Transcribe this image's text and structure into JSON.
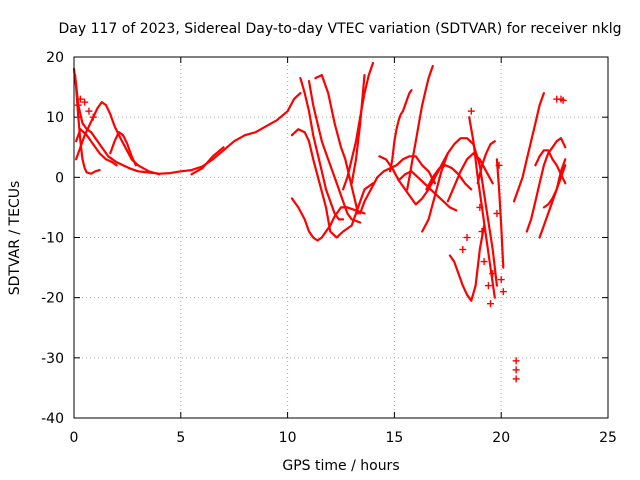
{
  "chart_data": {
    "type": "scatter",
    "title": "Day 117 of 2023, Sidereal Day-to-day VTEC variation (SDTVAR) for receiver nklg",
    "xlabel": "GPS time / hours",
    "ylabel": "SDTVAR / TECUs",
    "xlim": [
      0,
      25
    ],
    "ylim": [
      -40,
      20
    ],
    "xticks": [
      "0",
      "5",
      "10",
      "15",
      "20",
      "25"
    ],
    "yticks": [
      "-40",
      "-30",
      "-20",
      "-10",
      "0",
      "10",
      "20"
    ],
    "xtick_values": [
      0,
      5,
      10,
      15,
      20,
      25
    ],
    "ytick_values": [
      -40,
      -30,
      -20,
      -10,
      0,
      10,
      20
    ],
    "grid": true,
    "marker": "plus",
    "color": "#ff0000",
    "series": [
      {
        "x": [
          0.0,
          0.1,
          0.2,
          0.3,
          0.4,
          0.5,
          0.6,
          0.8,
          1.0,
          1.2
        ],
        "y": [
          18,
          15,
          10,
          6,
          3,
          1.5,
          0.8,
          0.6,
          1.0,
          1.2
        ]
      },
      {
        "x": [
          0.05,
          0.2,
          0.4,
          0.6,
          0.8,
          1.0,
          1.3,
          1.6,
          2.0,
          2.3,
          2.6,
          3.0,
          3.5,
          4.0,
          4.5,
          5.0,
          5.5,
          6.0,
          6.5,
          7.0,
          7.5,
          8.0,
          8.5,
          9.0,
          9.5,
          10.0,
          10.3,
          10.6
        ],
        "y": [
          17,
          12,
          9,
          8,
          7.5,
          6.5,
          5,
          3.5,
          2.5,
          2,
          1.5,
          1,
          0.8,
          0.6,
          0.7,
          1.0,
          1.2,
          1.8,
          3,
          4.5,
          6,
          7,
          7.5,
          8.5,
          9.5,
          11,
          13,
          14
        ]
      },
      {
        "x": [
          0.1,
          0.3,
          0.5,
          0.7,
          0.9,
          1.1,
          1.3,
          1.5,
          1.7,
          1.9,
          2.1,
          2.4,
          2.7,
          3.0,
          3.5,
          4.0
        ],
        "y": [
          3,
          5,
          7,
          8.5,
          10,
          11.5,
          12.5,
          12,
          10.5,
          8.5,
          7,
          5,
          3,
          2,
          1,
          0.5
        ]
      },
      {
        "x": [
          0.1,
          0.3,
          0.6,
          0.9,
          1.2,
          1.5,
          1.8,
          2.0
        ],
        "y": [
          6,
          8,
          7,
          5.5,
          4,
          3,
          2.5,
          2
        ]
      },
      {
        "x": [
          1.7,
          1.9,
          2.1,
          2.3,
          2.5,
          2.7,
          2.9
        ],
        "y": [
          4,
          6,
          7.5,
          7,
          5.5,
          3.5,
          2
        ]
      },
      {
        "x": [
          5.5,
          6.0,
          6.5,
          7.0
        ],
        "y": [
          0.5,
          1.5,
          3.5,
          5
        ]
      },
      {
        "x": [
          10.2,
          10.5,
          10.8,
          11.0,
          11.2,
          11.5,
          11.8,
          12.0,
          12.3,
          12.6,
          13.0,
          13.3,
          13.6,
          14.0
        ],
        "y": [
          7,
          8,
          7.5,
          6,
          3,
          -1,
          -5,
          -9,
          -10,
          -9,
          -8,
          -5,
          -2,
          -1
        ]
      },
      {
        "x": [
          10.2,
          10.5,
          10.8,
          11.0,
          11.2,
          11.4,
          11.6,
          11.8,
          12.0,
          12.2,
          12.5,
          12.8,
          13.2,
          13.6
        ],
        "y": [
          -3.5,
          -5,
          -7,
          -9,
          -10,
          -10.5,
          -10,
          -9,
          -8,
          -6.5,
          -5,
          -5,
          -5.5,
          -6
        ]
      },
      {
        "x": [
          10.6,
          10.8,
          11.0,
          11.2,
          11.4,
          11.6,
          11.8,
          12.0,
          12.2,
          12.4,
          12.6
        ],
        "y": [
          16.5,
          14,
          11,
          7,
          4,
          1,
          -2,
          -4,
          -6,
          -7,
          -7
        ]
      },
      {
        "x": [
          11.0,
          11.2,
          11.4,
          11.6,
          11.8,
          12.0,
          12.2,
          12.4,
          12.6,
          12.8,
          13.0,
          13.4
        ],
        "y": [
          16,
          12,
          9,
          6,
          4,
          2,
          0,
          -2,
          -4,
          -6,
          -7,
          -7.5
        ]
      },
      {
        "x": [
          11.3,
          11.6,
          11.9,
          12.2,
          12.5,
          12.7,
          12.9,
          13.1,
          13.3
        ],
        "y": [
          16.5,
          17,
          14,
          9,
          5,
          3,
          0,
          -3,
          -6
        ]
      },
      {
        "x": [
          12.6,
          12.8,
          13.0,
          13.2,
          13.4,
          13.6,
          13.8,
          14.0
        ],
        "y": [
          -2,
          0,
          3,
          6,
          10,
          14,
          17,
          19
        ]
      },
      {
        "x": [
          13.0,
          13.2,
          13.4,
          13.6
        ],
        "y": [
          -1,
          3,
          9,
          17
        ]
      },
      {
        "x": [
          13.4,
          13.6,
          13.9,
          14.2,
          14.5,
          14.8,
          15.1,
          15.4,
          15.7,
          16.0,
          16.3,
          16.6,
          16.9
        ],
        "y": [
          -6,
          -4,
          -2,
          0,
          1,
          1.5,
          2,
          3,
          3.5,
          3.5,
          2,
          1,
          -1
        ]
      },
      {
        "x": [
          14.3,
          14.6,
          14.9,
          15.2,
          15.5,
          15.8,
          16.0,
          16.3,
          16.6,
          16.9,
          17.2,
          17.5
        ],
        "y": [
          3.5,
          3,
          1.5,
          -0.5,
          -2,
          -3.5,
          -4.5,
          -3.5,
          -2,
          0,
          2,
          4
        ]
      },
      {
        "x": [
          15.2,
          15.5,
          15.8,
          16.1,
          16.4,
          16.7,
          17.0,
          17.3,
          17.6,
          17.9
        ],
        "y": [
          -0.5,
          0.5,
          1,
          0,
          -1,
          -2,
          -3,
          -4,
          -5,
          -5.5
        ]
      },
      {
        "x": [
          15.6,
          15.7,
          15.8,
          15.9,
          16.0,
          16.1,
          16.2,
          16.3,
          16.4,
          16.5,
          16.6,
          16.7,
          16.8
        ],
        "y": [
          -2,
          0,
          2,
          4,
          6,
          8,
          10,
          12,
          13.5,
          15,
          16.5,
          17.5,
          18.5
        ]
      },
      {
        "x": [
          14.8,
          14.9,
          15.0,
          15.1,
          15.2,
          15.3,
          15.4,
          15.5,
          15.6,
          15.7,
          15.8
        ],
        "y": [
          1,
          3,
          6,
          8,
          9.5,
          10.5,
          11,
          12,
          13,
          14,
          14.5
        ]
      },
      {
        "x": [
          16.3,
          16.6,
          16.9,
          17.2,
          17.5,
          17.8,
          18.1,
          18.4,
          18.7,
          19.0,
          19.3,
          19.6,
          19.8
        ],
        "y": [
          -9,
          -7,
          -3,
          1,
          4,
          5.5,
          6.5,
          6.5,
          5.5,
          2,
          -5,
          -12,
          -18
        ]
      },
      {
        "x": [
          16.5,
          16.8,
          17.1,
          17.4,
          17.7,
          18.0,
          18.3,
          18.6
        ],
        "y": [
          -2,
          0,
          1.5,
          2,
          1.5,
          0.5,
          -1,
          -2
        ]
      },
      {
        "x": [
          17.5,
          17.8,
          18.1,
          18.4,
          18.7,
          19.0,
          19.3,
          19.6
        ],
        "y": [
          -4,
          -1.5,
          1,
          3,
          4,
          3,
          1,
          -1
        ]
      },
      {
        "x": [
          17.6,
          17.8,
          18.0,
          18.2,
          18.4,
          18.6,
          18.8,
          19.0,
          19.2
        ],
        "y": [
          -13,
          -14,
          -16,
          -18,
          -19.5,
          -20.5,
          -18,
          -12,
          -8
        ]
      },
      {
        "x": [
          18.5,
          18.7,
          18.9,
          19.1,
          19.3,
          19.5,
          19.7
        ],
        "y": [
          10,
          6,
          0,
          -5,
          -10,
          -15,
          -20
        ]
      },
      {
        "x": [
          18.9,
          19.1,
          19.3,
          19.5,
          19.7
        ],
        "y": [
          -1,
          2,
          4,
          5.5,
          6
        ]
      },
      {
        "x": [
          19.8,
          19.9,
          20.0,
          20.1
        ],
        "y": [
          3,
          -2,
          -8,
          -15
        ]
      },
      {
        "x": [
          20.6,
          20.8,
          21.0,
          21.2,
          21.4,
          21.6,
          21.8,
          22.0
        ],
        "y": [
          -4,
          -2,
          0,
          3,
          6,
          9,
          12,
          14
        ]
      },
      {
        "x": [
          21.2,
          21.4,
          21.6,
          21.8,
          22.0,
          22.2,
          22.4,
          22.6,
          22.8,
          23.0
        ],
        "y": [
          -9,
          -7,
          -4,
          -1,
          2,
          4,
          5,
          6,
          6.5,
          5
        ]
      },
      {
        "x": [
          21.6,
          21.8,
          22.0,
          22.2,
          22.4,
          22.6,
          22.8,
          23.0
        ],
        "y": [
          2,
          3.5,
          4.5,
          4.5,
          3,
          2,
          0.5,
          -1
        ]
      },
      {
        "x": [
          21.8,
          22.0,
          22.2,
          22.4,
          22.6,
          22.8,
          23.0
        ],
        "y": [
          -10,
          -8,
          -6,
          -4,
          -2,
          1,
          3
        ]
      },
      {
        "x": [
          22.0,
          22.2,
          22.4,
          22.6,
          22.8,
          23.0
        ],
        "y": [
          -5,
          -4.5,
          -3.5,
          -2,
          0,
          2
        ]
      }
    ],
    "scatter_points": [
      {
        "x": [
          0.2,
          0.3,
          0.5,
          0.7,
          0.9
        ],
        "y": [
          12,
          13,
          12.5,
          11,
          10
        ]
      },
      {
        "x": [
          18.2,
          18.4,
          18.6,
          19.0,
          19.1,
          19.2,
          19.4,
          19.5,
          19.6,
          19.8,
          19.9,
          20.0,
          20.1
        ],
        "y": [
          -12,
          -10,
          11,
          -5,
          -9,
          -14,
          -18,
          -21,
          -16,
          -6,
          2,
          -17,
          -19
        ]
      },
      {
        "x": [
          20.7,
          20.7,
          20.7
        ],
        "y": [
          -30.5,
          -32,
          -33.5
        ]
      },
      {
        "x": [
          22.6,
          22.8,
          22.9
        ],
        "y": [
          13,
          13,
          12.8
        ]
      }
    ]
  }
}
